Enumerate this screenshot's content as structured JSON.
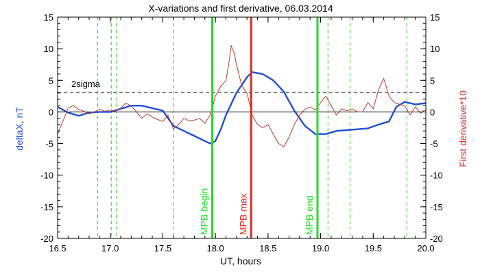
{
  "chart_data": {
    "type": "line",
    "title": "X-variations and first derivative, 06.03.2014",
    "xlabel": "UT, hours",
    "ylabel_left": "deltaX, nT",
    "ylabel_right": "First derivative*10",
    "xlim": [
      16.5,
      20.0
    ],
    "ylim": [
      -20,
      15
    ],
    "xticks": [
      16.5,
      17.0,
      17.5,
      18.0,
      18.5,
      19.0,
      19.5,
      20.0
    ],
    "xtick_labels": [
      "16.5",
      "17.0",
      "17.5",
      "18.0",
      "18.5",
      "19.0",
      "19.5",
      "20.0"
    ],
    "yticks": [
      -20,
      -15,
      -10,
      -5,
      0,
      5,
      10,
      15
    ],
    "ytick_labels": [
      "-20",
      "-15",
      "-10",
      "-5",
      "0",
      "5",
      "10",
      "15"
    ],
    "colors": {
      "deltaX": "#1f4fd8",
      "derivative": "#c0392b",
      "mpb_max": "#e8281e",
      "mpb_edge": "#22dd22",
      "dashed_green": "#22cc22"
    },
    "sigma": {
      "label": "2sigma",
      "y": 3.1
    },
    "zero_line": 0,
    "dashed_lines_x": [
      16.88,
      17.01,
      17.06,
      17.6,
      19.07,
      19.28,
      19.82
    ],
    "events": [
      {
        "label": "MPB begin",
        "x": 17.97,
        "kind": "edge"
      },
      {
        "label": "MPB max",
        "x": 18.34,
        "kind": "max"
      },
      {
        "label": "MPB end",
        "x": 18.97,
        "kind": "edge"
      }
    ],
    "series": [
      {
        "name": "deltaX",
        "x": [
          16.5,
          16.6,
          16.7,
          16.8,
          16.9,
          17.0,
          17.1,
          17.2,
          17.3,
          17.4,
          17.5,
          17.55,
          17.6,
          17.7,
          17.8,
          17.9,
          17.95,
          18.0,
          18.05,
          18.1,
          18.2,
          18.3,
          18.35,
          18.45,
          18.55,
          18.65,
          18.75,
          18.85,
          18.95,
          19.05,
          19.15,
          19.3,
          19.45,
          19.55,
          19.65,
          19.72,
          19.8,
          19.9,
          20.0
        ],
        "y": [
          0.8,
          -0.1,
          -0.6,
          -0.1,
          0.0,
          0.0,
          0.5,
          1.0,
          1.0,
          0.6,
          0.2,
          -1.0,
          -2.2,
          -3.0,
          -3.8,
          -4.6,
          -5.0,
          -4.6,
          -2.8,
          -0.5,
          3.0,
          5.5,
          6.3,
          6.0,
          5.0,
          3.2,
          0.2,
          -2.2,
          -3.5,
          -3.5,
          -3.0,
          -2.8,
          -2.6,
          -2.0,
          -1.5,
          0.8,
          1.6,
          1.2,
          1.4
        ]
      },
      {
        "name": "derivative",
        "x": [
          16.5,
          16.55,
          16.6,
          16.65,
          16.7,
          16.75,
          16.8,
          16.85,
          16.9,
          16.95,
          17.0,
          17.05,
          17.1,
          17.15,
          17.2,
          17.25,
          17.3,
          17.35,
          17.4,
          17.45,
          17.5,
          17.55,
          17.6,
          17.65,
          17.7,
          17.75,
          17.8,
          17.85,
          17.9,
          17.95,
          18.0,
          18.05,
          18.1,
          18.13,
          18.15,
          18.18,
          18.2,
          18.25,
          18.3,
          18.35,
          18.4,
          18.45,
          18.5,
          18.55,
          18.6,
          18.65,
          18.7,
          18.75,
          18.8,
          18.85,
          18.9,
          18.95,
          19.0,
          19.05,
          19.1,
          19.15,
          19.2,
          19.25,
          19.3,
          19.35,
          19.4,
          19.45,
          19.5,
          19.55,
          19.6,
          19.65,
          19.7,
          19.75,
          19.8,
          19.85,
          19.9,
          19.95,
          20.0
        ],
        "y": [
          -3.5,
          -1.5,
          0.6,
          1.0,
          0.4,
          0.1,
          -0.3,
          0.0,
          0.4,
          0.1,
          0.3,
          0.1,
          0.6,
          1.4,
          0.9,
          0.0,
          -1.0,
          -0.3,
          -0.8,
          -1.2,
          -1.5,
          -0.5,
          -2.7,
          -2.0,
          -1.0,
          -1.4,
          -1.3,
          -1.0,
          -1.8,
          -0.5,
          2.5,
          4.0,
          5.0,
          8.0,
          10.5,
          9.2,
          7.5,
          4.2,
          3.0,
          -0.5,
          -2.0,
          -2.5,
          -2.0,
          -3.5,
          -5.0,
          -5.5,
          -4.0,
          -2.0,
          -0.5,
          0.4,
          0.8,
          0.3,
          1.5,
          2.5,
          1.0,
          -0.5,
          0.5,
          0.2,
          0.5,
          0.0,
          0.0,
          1.5,
          0.5,
          3.5,
          5.3,
          2.5,
          1.5,
          1.2,
          1.0,
          -0.5,
          0.8,
          -0.2,
          0.4
        ]
      }
    ]
  }
}
